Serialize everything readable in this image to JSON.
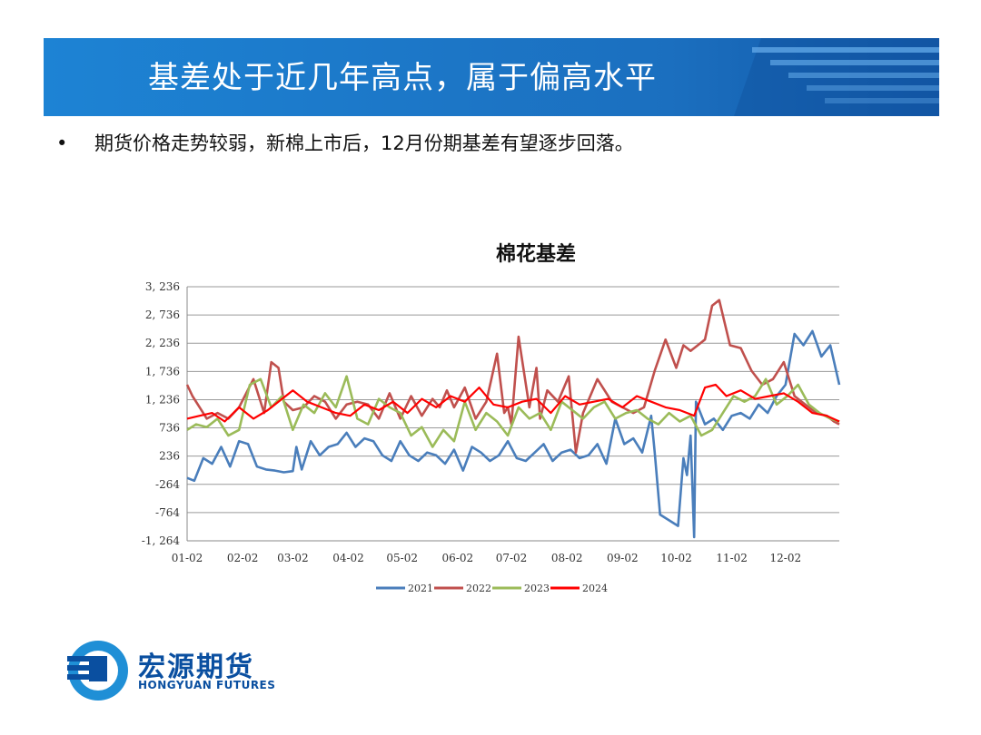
{
  "slide": {
    "title": "基差处于近几年高点，属于偏高水平",
    "bullet_symbol": "•",
    "bullet_text": "期货价格走势较弱，新棉上市后，12月份期基差有望逐步回落。"
  },
  "brand": {
    "name_cn": "宏源期货",
    "name_en": "HONGYUAN FUTURES",
    "color": "#0a4fa0"
  },
  "chart_data": {
    "type": "line",
    "title": "棉花基差",
    "xlabel": "",
    "ylabel": "",
    "ylim": [
      -1264,
      3236
    ],
    "y_ticks": [
      3236,
      2736,
      2236,
      1736,
      1236,
      736,
      236,
      -264,
      -764,
      -1264
    ],
    "y_tick_labels": [
      "3, 236",
      "2, 736",
      "2, 236",
      "1, 736",
      "1, 236",
      "736",
      "236",
      "-264",
      "-764",
      "-1, 264"
    ],
    "x_ticks": [
      "01-02",
      "02-02",
      "03-02",
      "04-02",
      "05-02",
      "06-02",
      "07-02",
      "08-02",
      "09-02",
      "10-02",
      "11-02",
      "12-02"
    ],
    "grid": "horizontal",
    "legend_position": "bottom",
    "series": [
      {
        "name": "2021",
        "color": "#4a7ebb",
        "x": [
          1,
          5,
          10,
          15,
          20,
          25,
          30,
          35,
          40,
          45,
          50,
          55,
          60,
          62,
          65,
          70,
          75,
          80,
          85,
          90,
          95,
          100,
          105,
          110,
          115,
          120,
          125,
          130,
          135,
          140,
          145,
          150,
          155,
          160,
          165,
          170,
          175,
          180,
          185,
          190,
          195,
          200,
          205,
          210,
          215,
          220,
          225,
          230,
          235,
          240,
          245,
          250,
          255,
          260,
          262,
          265,
          270,
          275,
          278,
          280,
          282,
          284,
          285,
          290,
          295,
          300,
          305,
          310,
          315,
          320,
          325,
          330,
          335,
          340,
          345,
          350,
          355,
          360,
          365
        ],
        "y": [
          -150,
          -200,
          200,
          100,
          400,
          50,
          500,
          450,
          50,
          0,
          -20,
          -50,
          -30,
          400,
          0,
          500,
          250,
          400,
          450,
          650,
          400,
          550,
          500,
          250,
          150,
          500,
          250,
          150,
          300,
          250,
          100,
          350,
          -20,
          400,
          300,
          150,
          250,
          500,
          200,
          150,
          300,
          450,
          150,
          300,
          350,
          200,
          250,
          450,
          100,
          900,
          450,
          550,
          300,
          950,
          300,
          -800,
          -900,
          -1000,
          200,
          -100,
          600,
          -1200,
          1200,
          800,
          900,
          700,
          950,
          1000,
          900,
          1150,
          1000,
          1300,
          1500,
          2400,
          2200,
          2450,
          2000,
          2200,
          1500
        ],
        "y_note": "estimated"
      },
      {
        "name": "2022",
        "color": "#c0504d",
        "x": [
          1,
          4,
          8,
          12,
          18,
          24,
          30,
          38,
          44,
          48,
          52,
          55,
          60,
          66,
          72,
          78,
          84,
          90,
          96,
          102,
          108,
          114,
          120,
          126,
          132,
          138,
          142,
          146,
          150,
          156,
          162,
          168,
          174,
          178,
          180,
          182,
          186,
          192,
          196,
          198,
          202,
          208,
          214,
          218,
          222,
          226,
          230,
          234,
          238,
          244,
          250,
          256,
          262,
          268,
          274,
          278,
          282,
          286,
          290,
          294,
          298,
          304,
          310,
          316,
          322,
          328,
          334,
          340,
          346,
          352,
          358,
          362,
          365
        ],
        "y": [
          1500,
          1300,
          1100,
          900,
          1000,
          900,
          1100,
          1600,
          1000,
          1900,
          1800,
          1200,
          1050,
          1100,
          1300,
          1200,
          900,
          1150,
          1200,
          1150,
          900,
          1350,
          900,
          1300,
          950,
          1250,
          1100,
          1400,
          1100,
          1450,
          900,
          1200,
          2050,
          1000,
          1100,
          800,
          2350,
          1100,
          1800,
          900,
          1400,
          1200,
          1650,
          300,
          1000,
          1300,
          1600,
          1400,
          1200,
          1100,
          1000,
          1100,
          1750,
          2300,
          1800,
          2200,
          2100,
          2200,
          2300,
          2900,
          3000,
          2200,
          2150,
          1750,
          1500,
          1600,
          1900,
          1300,
          1150,
          1000,
          950,
          850,
          800
        ],
        "y_note": "estimated"
      },
      {
        "name": "2023",
        "color": "#9bbb59",
        "x": [
          1,
          6,
          12,
          18,
          24,
          30,
          36,
          42,
          48,
          54,
          60,
          66,
          72,
          78,
          84,
          90,
          96,
          102,
          108,
          114,
          120,
          126,
          132,
          138,
          144,
          150,
          156,
          162,
          168,
          174,
          180,
          186,
          192,
          198,
          204,
          210,
          216,
          222,
          228,
          234,
          240,
          246,
          252,
          258,
          264,
          270,
          276,
          282,
          288,
          294,
          300,
          306,
          312,
          318,
          324,
          330,
          336,
          342,
          348,
          354,
          360,
          365
        ],
        "y": [
          700,
          800,
          750,
          900,
          600,
          700,
          1500,
          1600,
          1100,
          1300,
          700,
          1150,
          1000,
          1350,
          1100,
          1650,
          900,
          800,
          1250,
          1100,
          1000,
          600,
          750,
          400,
          700,
          500,
          1200,
          700,
          1000,
          850,
          600,
          1100,
          900,
          1000,
          700,
          1200,
          1050,
          900,
          1100,
          1200,
          900,
          1000,
          1050,
          900,
          800,
          1000,
          850,
          950,
          600,
          700,
          1000,
          1300,
          1200,
          1300,
          1600,
          1150,
          1300,
          1500,
          1150,
          1000,
          900,
          850
        ],
        "y_note": "estimated"
      },
      {
        "name": "2024",
        "color": "#ff0000",
        "x": [
          1,
          8,
          15,
          22,
          30,
          38,
          46,
          54,
          60,
          68,
          76,
          84,
          92,
          100,
          108,
          116,
          124,
          132,
          140,
          148,
          156,
          164,
          172,
          180,
          188,
          196,
          204,
          212,
          220,
          228,
          236,
          244,
          252,
          260,
          268,
          276,
          284,
          290,
          296,
          302,
          310,
          318,
          326,
          334,
          342,
          350,
          358,
          365
        ],
        "y": [
          900,
          950,
          1000,
          850,
          1100,
          900,
          1050,
          1250,
          1400,
          1200,
          1100,
          1000,
          950,
          1150,
          1050,
          1200,
          1000,
          1250,
          1100,
          1300,
          1200,
          1450,
          1150,
          1100,
          1200,
          1250,
          1000,
          1300,
          1150,
          1200,
          1250,
          1100,
          1300,
          1200,
          1100,
          1050,
          950,
          1450,
          1500,
          1300,
          1400,
          1250,
          1300,
          1350,
          1200,
          1000,
          950,
          850
        ],
        "y_note": "estimated"
      }
    ]
  }
}
